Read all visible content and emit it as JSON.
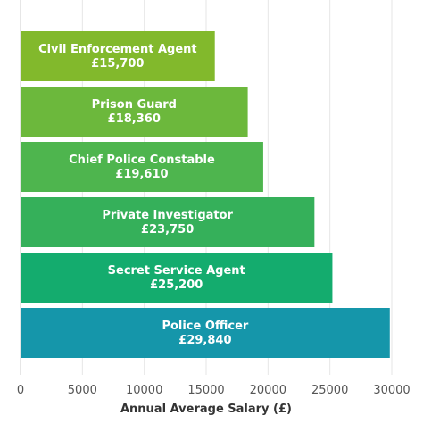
{
  "chart_data": {
    "type": "bar",
    "orientation": "horizontal",
    "categories": [
      "Civil Enforcement Agent",
      "Prison Guard",
      "Chief Police Constable",
      "Private Investigator",
      "Secret Service Agent",
      "Police Officer"
    ],
    "values": [
      15700,
      18360,
      19610,
      23750,
      25200,
      29840
    ],
    "value_labels": [
      "£15,700",
      "£18,360",
      "£19,610",
      "£23,750",
      "£25,200",
      "£29,840"
    ],
    "bar_colors": [
      "#82b92c",
      "#6cb83c",
      "#4eb54e",
      "#35b05a",
      "#14ac6e",
      "#1596aa"
    ],
    "xlabel": "Annual Average Salary (£)",
    "ylabel": "",
    "title": "",
    "xlim": [
      0,
      30000
    ],
    "xticks": [
      0,
      5000,
      10000,
      15000,
      20000,
      25000,
      30000
    ],
    "grid": true,
    "legend": "none"
  }
}
